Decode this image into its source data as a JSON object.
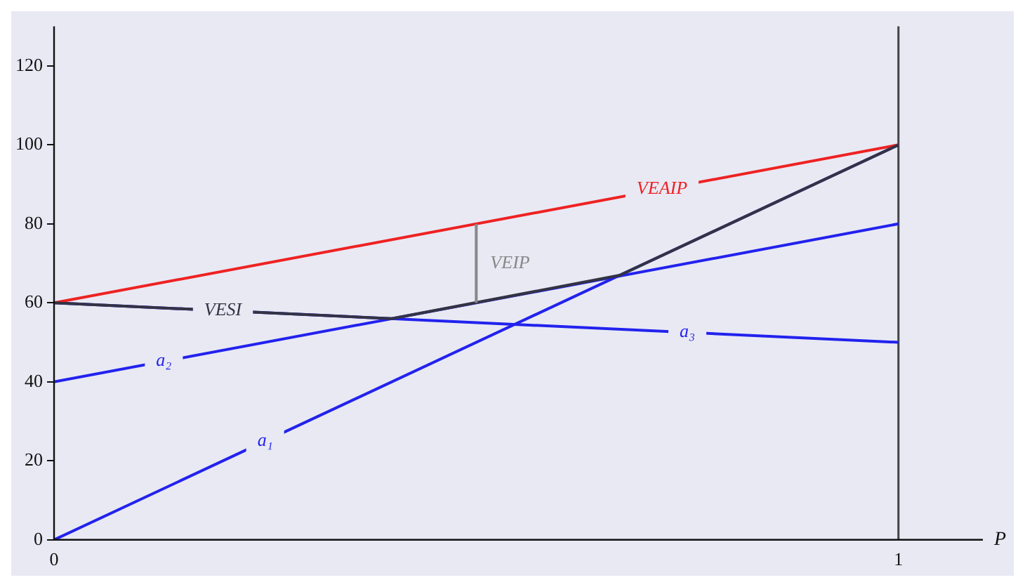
{
  "chart_data": {
    "type": "line",
    "xlabel": "P",
    "xlim": [
      0,
      1.1
    ],
    "xticks": [
      0,
      1
    ],
    "ylim": [
      0,
      130
    ],
    "yticks": [
      0,
      20,
      40,
      60,
      80,
      100,
      120
    ],
    "grid": false,
    "legend": false,
    "marker": "none",
    "line_style": "solid",
    "series": [
      {
        "name": "a₁",
        "color": "#2222ee",
        "x": [
          0,
          1
        ],
        "values": [
          0,
          100
        ]
      },
      {
        "name": "a₂",
        "color": "#2222ee",
        "x": [
          0,
          1
        ],
        "values": [
          40,
          80
        ]
      },
      {
        "name": "a₃",
        "color": "#2222ee",
        "x": [
          0,
          1
        ],
        "values": [
          60,
          50
        ]
      },
      {
        "name": "VEAIP",
        "color": "#ee2222",
        "x": [
          0,
          1
        ],
        "values": [
          60,
          100
        ]
      },
      {
        "name": "VESI",
        "color": "#333344",
        "x": [
          0,
          0.4,
          0.67,
          1
        ],
        "values": [
          60,
          56,
          67,
          100
        ]
      },
      {
        "name": "VEIP",
        "color": "#888888",
        "x": [
          0.5,
          0.5
        ],
        "values": [
          60,
          80
        ]
      }
    ],
    "ref_lines": [
      {
        "axis": "x",
        "value": 1,
        "color": "#444444"
      }
    ]
  }
}
